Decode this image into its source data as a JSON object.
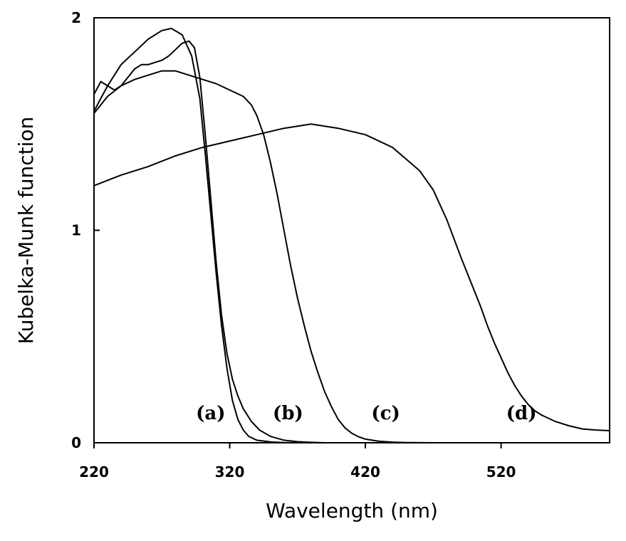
{
  "chart_data": {
    "type": "line",
    "xlabel": "Wavelength (nm)",
    "ylabel": "Kubelka-Munk function",
    "xlim": [
      220,
      600
    ],
    "ylim": [
      0,
      2
    ],
    "xticks": [
      "220",
      "320",
      "420",
      "520"
    ],
    "xtick_values": [
      220,
      320,
      420,
      520
    ],
    "yticks": [
      "0",
      "1",
      "2"
    ],
    "ytick_values": [
      0,
      1,
      2
    ],
    "grid": false,
    "legend": "none",
    "series": [
      {
        "label": "(a)",
        "label_pos": [
          306,
          0.14
        ],
        "x": [
          220,
          225,
          230,
          240,
          250,
          260,
          270,
          277,
          285,
          292,
          298,
          302,
          306,
          310,
          314,
          318,
          322,
          326,
          330,
          334,
          340,
          350,
          360,
          370
        ],
        "y": [
          1.56,
          1.62,
          1.68,
          1.78,
          1.84,
          1.9,
          1.94,
          1.95,
          1.92,
          1.82,
          1.62,
          1.36,
          1.08,
          0.8,
          0.55,
          0.35,
          0.2,
          0.11,
          0.06,
          0.03,
          0.012,
          0.004,
          0.001,
          0.0
        ]
      },
      {
        "label": "(b)",
        "label_pos": [
          363,
          0.14
        ],
        "x": [
          220,
          225,
          230,
          235,
          240,
          245,
          250,
          255,
          260,
          265,
          270,
          275,
          280,
          285,
          290,
          294,
          298,
          302,
          306,
          310,
          314,
          318,
          322,
          326,
          330,
          336,
          342,
          350,
          360,
          370,
          380,
          390
        ],
        "y": [
          1.64,
          1.7,
          1.68,
          1.66,
          1.68,
          1.72,
          1.76,
          1.78,
          1.78,
          1.79,
          1.8,
          1.82,
          1.85,
          1.88,
          1.89,
          1.86,
          1.72,
          1.45,
          1.15,
          0.85,
          0.6,
          0.42,
          0.3,
          0.22,
          0.16,
          0.1,
          0.06,
          0.03,
          0.012,
          0.005,
          0.002,
          0.0
        ]
      },
      {
        "label": "(c)",
        "label_pos": [
          435,
          0.14
        ],
        "x": [
          220,
          230,
          240,
          250,
          260,
          270,
          280,
          290,
          300,
          310,
          320,
          330,
          336,
          340,
          345,
          350,
          355,
          360,
          365,
          370,
          375,
          380,
          385,
          390,
          395,
          400,
          405,
          410,
          415,
          420,
          430,
          440,
          450,
          460,
          470
        ],
        "y": [
          1.55,
          1.63,
          1.68,
          1.71,
          1.73,
          1.75,
          1.75,
          1.73,
          1.71,
          1.69,
          1.66,
          1.63,
          1.59,
          1.54,
          1.45,
          1.32,
          1.17,
          1.0,
          0.83,
          0.68,
          0.55,
          0.43,
          0.33,
          0.24,
          0.17,
          0.11,
          0.07,
          0.045,
          0.028,
          0.017,
          0.007,
          0.003,
          0.001,
          0.0005,
          0.0
        ]
      },
      {
        "label": "(d)",
        "label_pos": [
          535,
          0.14
        ],
        "x": [
          220,
          240,
          260,
          280,
          300,
          320,
          340,
          360,
          380,
          400,
          420,
          440,
          460,
          470,
          480,
          490,
          495,
          500,
          505,
          510,
          515,
          520,
          525,
          530,
          535,
          540,
          545,
          550,
          560,
          570,
          580,
          590,
          600
        ],
        "y": [
          1.21,
          1.26,
          1.3,
          1.35,
          1.39,
          1.42,
          1.45,
          1.48,
          1.5,
          1.48,
          1.45,
          1.39,
          1.28,
          1.19,
          1.05,
          0.88,
          0.8,
          0.72,
          0.64,
          0.55,
          0.47,
          0.4,
          0.33,
          0.27,
          0.22,
          0.18,
          0.15,
          0.13,
          0.1,
          0.08,
          0.065,
          0.06,
          0.057
        ]
      }
    ]
  }
}
